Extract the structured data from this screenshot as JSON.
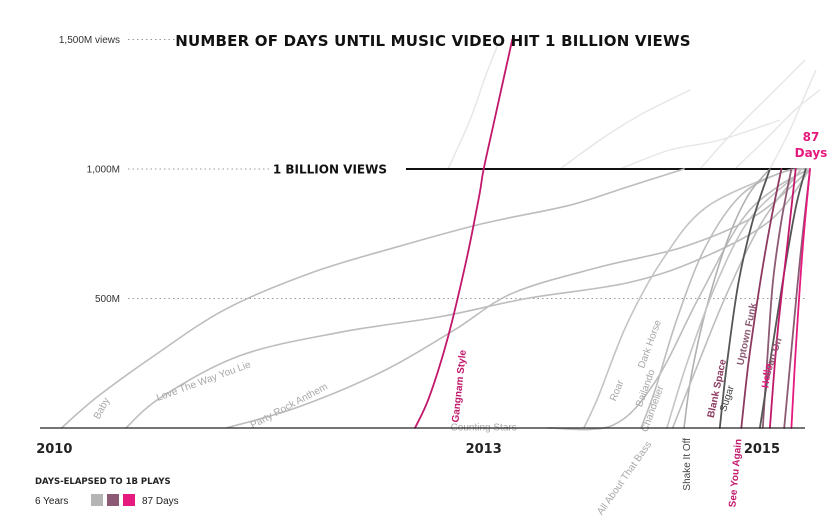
{
  "chart_data": {
    "type": "line",
    "title": "NUMBER OF DAYS UNTIL MUSIC VIDEO HIT 1 BILLION VIEWS",
    "y_unit": "M views",
    "ylim": [
      0,
      1500
    ],
    "y_ticks": [
      {
        "value": 1500,
        "label": "1,500M views"
      },
      {
        "value": 1000,
        "label": "1,000M"
      },
      {
        "value": 500,
        "label": "500M"
      }
    ],
    "x_ticks": [
      {
        "value": 2010,
        "label": "2010"
      },
      {
        "value": 2013,
        "label": "2013"
      },
      {
        "value": 2015,
        "label": "2015"
      }
    ],
    "xlim": [
      2009.9,
      2015.35
    ],
    "threshold": {
      "value": 1000,
      "label": "1 BILLION VIEWS"
    },
    "callout": {
      "value": "87",
      "unit": "Days"
    },
    "grid": "dotted leaders at labeled y-values",
    "legend": {
      "title": "DAYS-ELAPSED TO 1B PLAYS",
      "start_label": "6 Years",
      "end_label": "87 Days",
      "swatches": [
        "#b5b5b5",
        "#8c5a72",
        "#e6197e"
      ],
      "placement": "bottom-left"
    },
    "series": [
      {
        "name": "Baby",
        "color": "#bdbdbd",
        "label_angle": -62,
        "points": [
          [
            2010.05,
            0
          ],
          [
            2010.3,
            120
          ],
          [
            2010.7,
            280
          ],
          [
            2011.2,
            460
          ],
          [
            2011.8,
            600
          ],
          [
            2012.4,
            700
          ],
          [
            2013.0,
            790
          ],
          [
            2013.6,
            860
          ],
          [
            2014.0,
            930
          ],
          [
            2014.4,
            1000
          ]
        ]
      },
      {
        "name": "Love The Way You Lie",
        "color": "#bdbdbd",
        "label_angle": -20,
        "points": [
          [
            2010.5,
            0
          ],
          [
            2010.75,
            120
          ],
          [
            2011.3,
            280
          ],
          [
            2012.0,
            370
          ],
          [
            2012.7,
            430
          ],
          [
            2013.3,
            500
          ],
          [
            2014.0,
            560
          ],
          [
            2014.5,
            650
          ],
          [
            2015.0,
            800
          ],
          [
            2015.28,
            1000
          ]
        ]
      },
      {
        "name": "Party Rock Anthem",
        "color": "#bdbdbd",
        "label_angle": -28,
        "points": [
          [
            2011.2,
            0
          ],
          [
            2011.7,
            80
          ],
          [
            2012.3,
            220
          ],
          [
            2012.8,
            380
          ],
          [
            2013.2,
            520
          ],
          [
            2013.8,
            620
          ],
          [
            2014.4,
            700
          ],
          [
            2014.9,
            820
          ],
          [
            2015.28,
            1000
          ]
        ]
      },
      {
        "name": "Gangnam Style",
        "color": "#c2186b",
        "label_angle": -84,
        "points": [
          [
            2012.52,
            0
          ],
          [
            2012.62,
            120
          ],
          [
            2012.75,
            350
          ],
          [
            2012.88,
            650
          ],
          [
            2012.97,
            900
          ],
          [
            2013.0,
            1000
          ],
          [
            2013.08,
            1200
          ],
          [
            2013.2,
            1500
          ]
        ]
      },
      {
        "name": "Counting Stars",
        "color": "#bdbdbd",
        "label_angle": 0,
        "points": [
          [
            2013.45,
            0
          ],
          [
            2013.9,
            10
          ],
          [
            2014.2,
            180
          ],
          [
            2014.5,
            500
          ],
          [
            2014.8,
            800
          ],
          [
            2015.05,
            930
          ],
          [
            2015.28,
            1000
          ]
        ]
      },
      {
        "name": "Roar",
        "color": "#c4c4c4",
        "label_angle": -68,
        "points": [
          [
            2013.7,
            0
          ],
          [
            2013.8,
            120
          ],
          [
            2014.0,
            400
          ],
          [
            2014.25,
            650
          ],
          [
            2014.55,
            850
          ],
          [
            2015.05,
            980
          ],
          [
            2015.25,
            1000
          ]
        ]
      },
      {
        "name": "Dark Horse",
        "color": "#bdbdbd",
        "label_angle": -70,
        "points": [
          [
            2014.1,
            0
          ],
          [
            2014.2,
            150
          ],
          [
            2014.35,
            420
          ],
          [
            2014.55,
            700
          ],
          [
            2014.8,
            900
          ],
          [
            2015.1,
            990
          ],
          [
            2015.28,
            1000
          ]
        ]
      },
      {
        "name": "All About That Bass",
        "color": "#b0b0b0",
        "label_angle": -55,
        "points": [
          [
            2014.4,
            0
          ],
          [
            2014.45,
            200
          ],
          [
            2014.55,
            450
          ],
          [
            2014.7,
            720
          ],
          [
            2014.85,
            900
          ],
          [
            2015.0,
            1000
          ]
        ]
      },
      {
        "name": "Bailando",
        "color": "#c4c4c4",
        "label_angle": -70,
        "points": [
          [
            2014.28,
            0
          ],
          [
            2014.42,
            250
          ],
          [
            2014.62,
            550
          ],
          [
            2014.85,
            800
          ],
          [
            2015.15,
            960
          ],
          [
            2015.28,
            1000
          ]
        ]
      },
      {
        "name": "Chandelier",
        "color": "#bdbdbd",
        "label_angle": -70,
        "points": [
          [
            2014.32,
            0
          ],
          [
            2014.5,
            250
          ],
          [
            2014.7,
            520
          ],
          [
            2014.95,
            800
          ],
          [
            2015.22,
            1000
          ]
        ]
      },
      {
        "name": "Shake It Off",
        "color": "#555555",
        "label_angle": -90,
        "points": [
          [
            2014.65,
            0
          ],
          [
            2014.7,
            250
          ],
          [
            2014.78,
            560
          ],
          [
            2014.88,
            800
          ],
          [
            2015.0,
            1000
          ]
        ]
      },
      {
        "name": "Blank Space",
        "color": "#8c3a60",
        "label_angle": -78,
        "points": [
          [
            2014.8,
            0
          ],
          [
            2014.85,
            250
          ],
          [
            2014.92,
            520
          ],
          [
            2015.0,
            780
          ],
          [
            2015.08,
            1000
          ]
        ]
      },
      {
        "name": "Uptown Funk",
        "color": "#8c5a72",
        "label_angle": -78,
        "points": [
          [
            2014.95,
            0
          ],
          [
            2014.98,
            250
          ],
          [
            2015.02,
            560
          ],
          [
            2015.08,
            800
          ],
          [
            2015.15,
            1000
          ]
        ]
      },
      {
        "name": "Sugar",
        "color": "#555555",
        "label_angle": -72,
        "points": [
          [
            2014.93,
            0
          ],
          [
            2015.0,
            250
          ],
          [
            2015.1,
            600
          ],
          [
            2015.18,
            850
          ],
          [
            2015.25,
            1000
          ]
        ]
      },
      {
        "name": "See You Again",
        "color": "#c2186b",
        "label_angle": -85,
        "points": [
          [
            2015.0,
            0
          ],
          [
            2015.05,
            350
          ],
          [
            2015.12,
            700
          ],
          [
            2015.18,
            1000
          ]
        ]
      },
      {
        "name": "Lean On",
        "color": "#8c5a72",
        "label_angle": -72,
        "points": [
          [
            2015.1,
            0
          ],
          [
            2015.15,
            300
          ],
          [
            2015.21,
            650
          ],
          [
            2015.28,
            1000
          ]
        ]
      },
      {
        "name": "Hello",
        "color": "#e6197e",
        "label_angle": -82,
        "points": [
          [
            2015.15,
            0
          ],
          [
            2015.18,
            300
          ],
          [
            2015.23,
            700
          ],
          [
            2015.28,
            1000
          ]
        ]
      }
    ]
  }
}
